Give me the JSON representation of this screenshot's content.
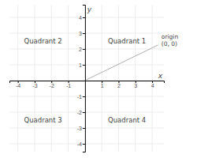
{
  "chart_data": {
    "type": "coordinate_plane",
    "xlabel": "x",
    "ylabel": "y",
    "xlim": [
      -4.5,
      4.7
    ],
    "ylim": [
      -4.5,
      4.8
    ],
    "xticks": [
      -4,
      -3,
      -2,
      -1,
      1,
      2,
      3,
      4
    ],
    "yticks": [
      -4,
      -3,
      -2,
      -1,
      1,
      2,
      3,
      4
    ],
    "grid": true,
    "annotations": [
      {
        "text": "Quadrant 2",
        "x": -2.5,
        "y": 2.5
      },
      {
        "text": "Quadrant 1",
        "x": 2.5,
        "y": 2.5
      },
      {
        "text": "Quadrant 3",
        "x": -2.5,
        "y": -2.5
      },
      {
        "text": "Quadrant 4",
        "x": 2.5,
        "y": -2.5
      },
      {
        "text": "origin\n(0, 0)",
        "x": 4.55,
        "y": 2.55,
        "arrow_from": [
          4.35,
          2.25
        ],
        "arrow_to": [
          0.08,
          0.05
        ]
      }
    ]
  }
}
